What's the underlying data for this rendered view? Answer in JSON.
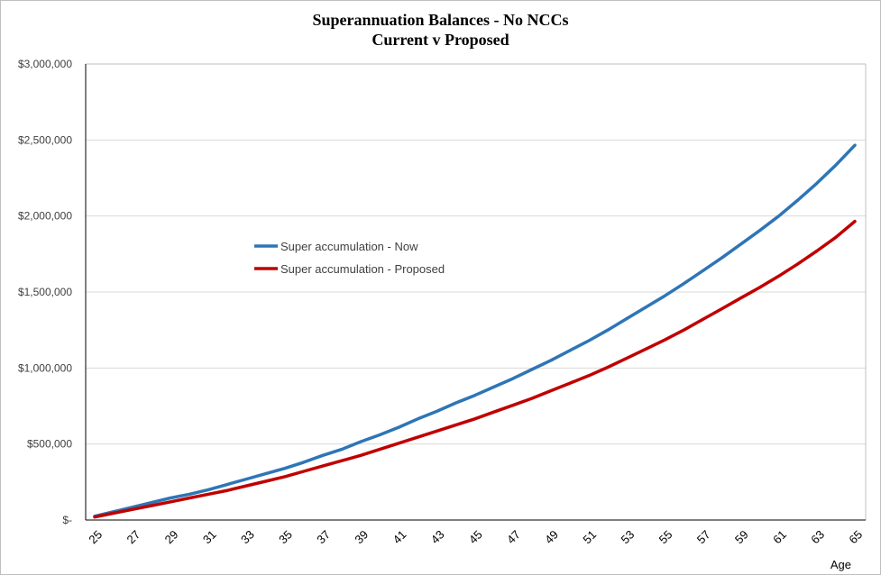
{
  "chart_data": {
    "type": "line",
    "title": "Superannuation Balances - No NCCs",
    "subtitle": "Current v Proposed",
    "xlabel": "Age",
    "ylabel": "",
    "ylim": [
      0,
      3000000
    ],
    "yticks": [
      {
        "value": 0,
        "label": "$-"
      },
      {
        "value": 500000,
        "label": "$500,000"
      },
      {
        "value": 1000000,
        "label": "$1,000,000"
      },
      {
        "value": 1500000,
        "label": "$1,500,000"
      },
      {
        "value": 2000000,
        "label": "$2,000,000"
      },
      {
        "value": 2500000,
        "label": "$2,500,000"
      },
      {
        "value": 3000000,
        "label": "$3,000,000"
      }
    ],
    "x": [
      25,
      26,
      27,
      28,
      29,
      30,
      31,
      32,
      33,
      34,
      35,
      36,
      37,
      38,
      39,
      40,
      41,
      42,
      43,
      44,
      45,
      46,
      47,
      48,
      49,
      50,
      51,
      52,
      53,
      54,
      55,
      56,
      57,
      58,
      59,
      60,
      61,
      62,
      63,
      64,
      65
    ],
    "xtick_labels": [
      "25",
      "27",
      "29",
      "31",
      "33",
      "35",
      "37",
      "39",
      "41",
      "43",
      "45",
      "47",
      "49",
      "51",
      "53",
      "55",
      "57",
      "59",
      "61",
      "63",
      "65"
    ],
    "grid": "horizontal",
    "legend_position": "center-left",
    "series": [
      {
        "name": "Super accumulation - Now",
        "color": "#2e75b6",
        "values": [
          25000,
          55000,
          85000,
          115000,
          145000,
          170000,
          200000,
          235000,
          270000,
          305000,
          340000,
          380000,
          425000,
          465000,
          515000,
          560000,
          610000,
          665000,
          715000,
          770000,
          820000,
          875000,
          930000,
          990000,
          1050000,
          1115000,
          1180000,
          1250000,
          1325000,
          1400000,
          1475000,
          1555000,
          1640000,
          1725000,
          1815000,
          1905000,
          2000000,
          2105000,
          2215000,
          2335000,
          2465000
        ]
      },
      {
        "name": "Super accumulation - Proposed",
        "color": "#c00000",
        "values": [
          20000,
          45000,
          70000,
          95000,
          120000,
          145000,
          170000,
          195000,
          225000,
          255000,
          285000,
          320000,
          355000,
          390000,
          425000,
          465000,
          505000,
          545000,
          585000,
          625000,
          665000,
          710000,
          755000,
          800000,
          850000,
          900000,
          950000,
          1005000,
          1065000,
          1125000,
          1185000,
          1250000,
          1320000,
          1390000,
          1460000,
          1530000,
          1605000,
          1685000,
          1770000,
          1860000,
          1965000
        ]
      }
    ]
  }
}
